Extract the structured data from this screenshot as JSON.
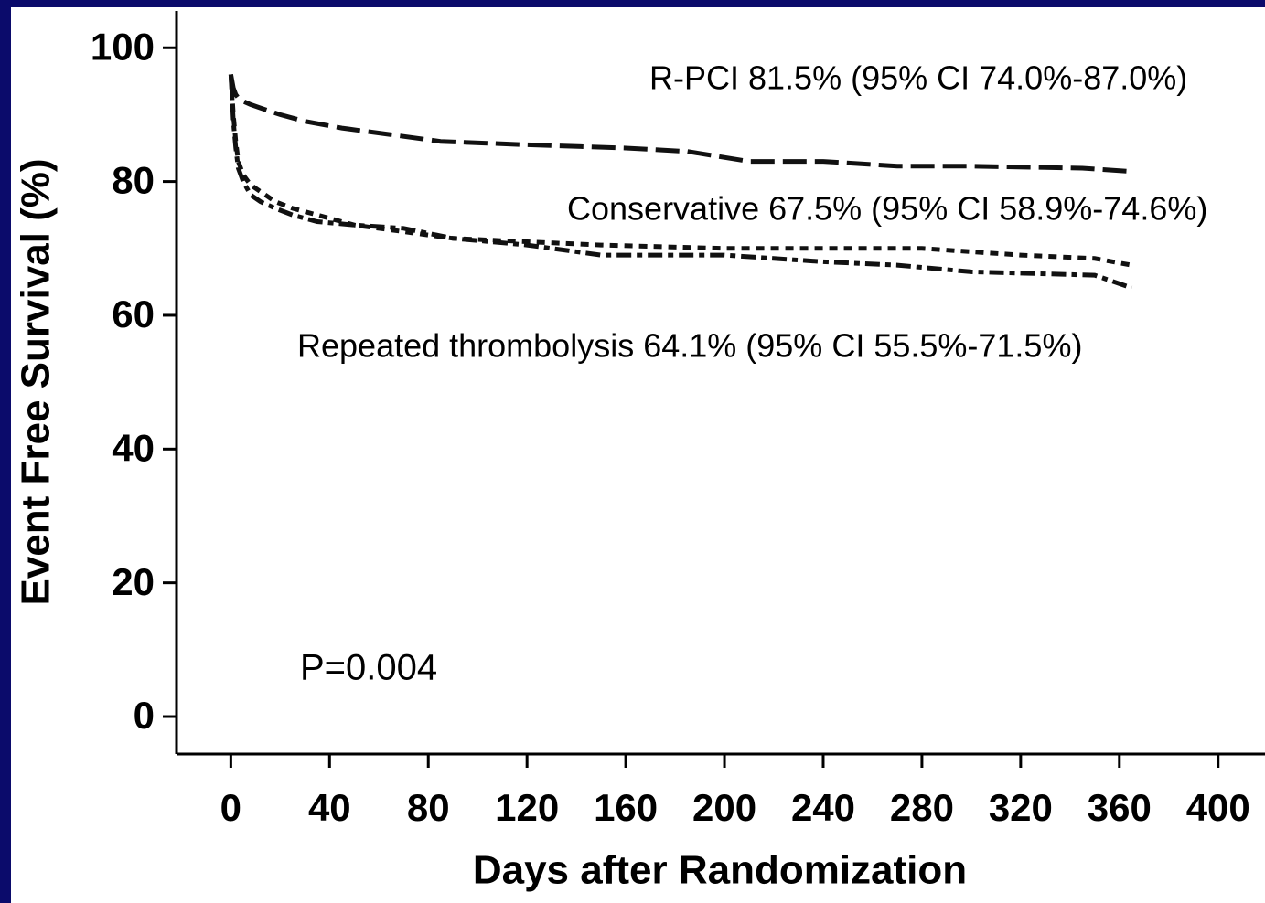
{
  "chart_data": {
    "type": "line",
    "xlabel": "Days after Randomization",
    "ylabel": "Event Free Survival (%)",
    "xlim": [
      -22,
      419
    ],
    "ylim": [
      -5.6,
      105.5
    ],
    "xticks": [
      0,
      40,
      80,
      120,
      160,
      200,
      240,
      280,
      320,
      360,
      400
    ],
    "yticks": [
      0,
      20,
      40,
      60,
      80,
      100
    ],
    "grid": false,
    "annotation": "P=0.004",
    "series": [
      {
        "name": "R-PCI 81.5% (95% CI 74.0%-87.0%)",
        "color": "#111111",
        "dash": "long-dash",
        "x": [
          0,
          1,
          2,
          3,
          5,
          8,
          12,
          20,
          30,
          45,
          65,
          85,
          120,
          160,
          185,
          210,
          240,
          270,
          300,
          345,
          365
        ],
        "values": [
          96,
          94,
          93,
          92.5,
          92,
          91.5,
          91,
          90,
          89,
          88,
          87,
          86,
          85.5,
          85,
          84.5,
          83,
          83,
          82.3,
          82.3,
          82,
          81.5
        ]
      },
      {
        "name": "Conservative 67.5% (95% CI 58.9%-74.6%)",
        "color": "#111111",
        "dash": "dotted",
        "x": [
          0,
          1,
          2,
          3,
          5,
          8,
          12,
          18,
          25,
          35,
          50,
          70,
          90,
          120,
          150,
          200,
          240,
          280,
          320,
          350,
          365
        ],
        "values": [
          96,
          90,
          86,
          83,
          81,
          79.5,
          78.5,
          77,
          76,
          75,
          73.5,
          72.5,
          71.5,
          71,
          70.5,
          70,
          70,
          70,
          69,
          68.5,
          67.5
        ]
      },
      {
        "name": "Repeated thrombolysis 64.1% (95% CI 55.5%-71.5%)",
        "color": "#111111",
        "dash": "dash-dot",
        "x": [
          0,
          1,
          2,
          3,
          5,
          8,
          12,
          18,
          25,
          35,
          50,
          70,
          90,
          120,
          150,
          200,
          240,
          270,
          300,
          350,
          365
        ],
        "values": [
          96,
          89,
          85,
          82,
          80,
          78,
          77,
          76,
          75,
          74,
          73.5,
          73,
          71.5,
          70.5,
          69,
          69,
          68,
          67.5,
          66.5,
          66,
          64.1
        ]
      }
    ]
  }
}
